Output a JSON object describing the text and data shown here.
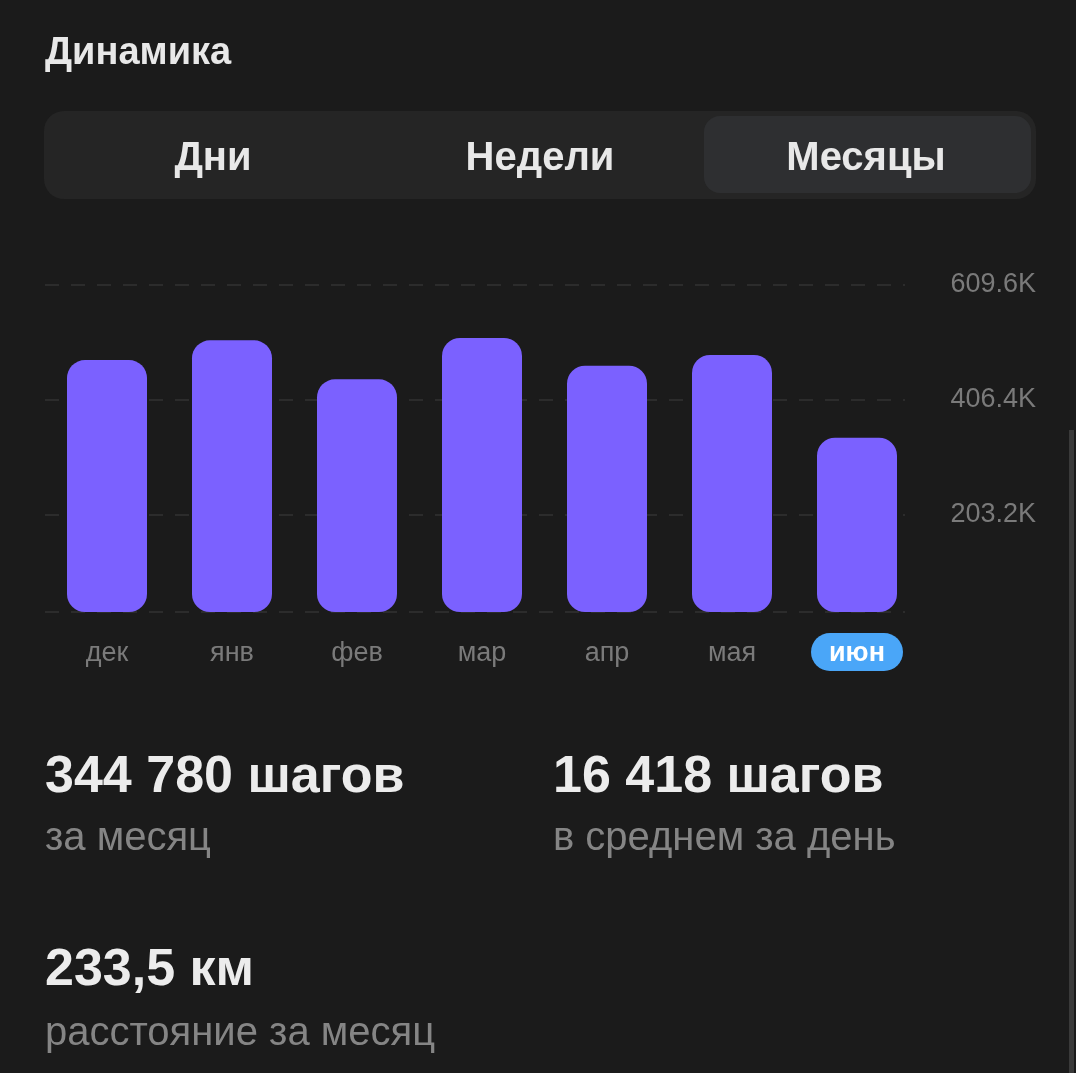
{
  "chart_data": {
    "type": "bar",
    "title": "Динамика",
    "categories": [
      "дек",
      "янв",
      "фев",
      "мар",
      "апр",
      "мая",
      "июн"
    ],
    "values": [
      477000,
      512000,
      443000,
      516000,
      467000,
      486000,
      340000
    ],
    "color": "#7b61ff",
    "ylim": [
      32000,
      609600
    ],
    "yticks": [
      {
        "value": 203200,
        "label": "203.2K"
      },
      {
        "value": 406400,
        "label": "406.4K"
      },
      {
        "value": 609600,
        "label": "609.6K"
      }
    ],
    "grid": "y",
    "annotations": [
      "Дни",
      "Недели",
      "Месяцы",
      "344 780 шагов",
      "за месяц",
      "16 418 шагов",
      "в среднем за день",
      "233,5 км",
      "расстояние за месяц"
    ]
  }
}
